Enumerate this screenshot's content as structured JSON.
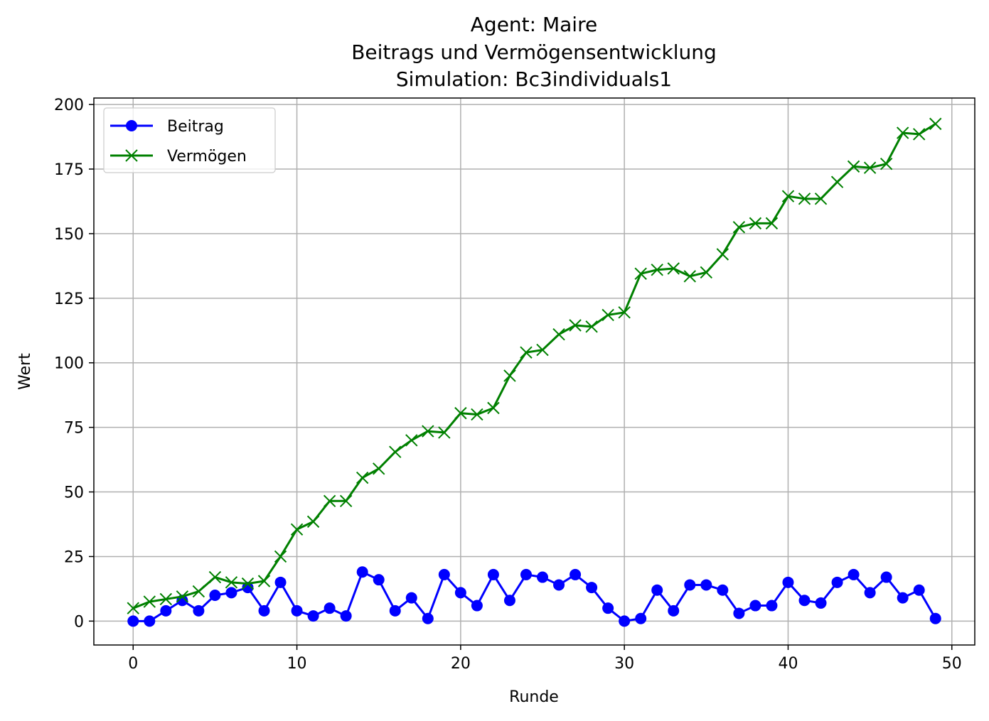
{
  "chart_data": {
    "type": "line",
    "title_lines": [
      "Agent: Maire",
      "Beitrags und Vermögensentwicklung",
      "Simulation: Bc3individuals1"
    ],
    "xlabel": "Runde",
    "ylabel": "Wert",
    "xlim": [
      -2.4,
      51.4
    ],
    "ylim": [
      -9.25,
      202.5
    ],
    "xticks": [
      0,
      10,
      20,
      30,
      40,
      50
    ],
    "yticks": [
      0,
      25,
      50,
      75,
      100,
      125,
      150,
      175,
      200
    ],
    "grid": true,
    "legend_position": "top-left",
    "x": [
      0,
      1,
      2,
      3,
      4,
      5,
      6,
      7,
      8,
      9,
      10,
      11,
      12,
      13,
      14,
      15,
      16,
      17,
      18,
      19,
      20,
      21,
      22,
      23,
      24,
      25,
      26,
      27,
      28,
      29,
      30,
      31,
      32,
      33,
      34,
      35,
      36,
      37,
      38,
      39,
      40,
      41,
      42,
      43,
      44,
      45,
      46,
      47,
      48,
      49
    ],
    "series": [
      {
        "name": "Beitrag",
        "color": "#0000ff",
        "marker": "circle",
        "values": [
          0,
          0,
          4,
          8,
          4,
          10,
          11,
          13,
          4,
          15,
          4,
          2,
          5,
          2,
          19,
          16,
          4,
          9,
          1,
          18,
          11,
          6,
          18,
          8,
          18,
          17,
          14,
          18,
          13,
          5,
          0,
          1,
          12,
          4,
          14,
          14,
          12,
          3,
          6,
          6,
          15,
          8,
          7,
          15,
          18,
          11,
          17,
          9,
          12,
          1
        ]
      },
      {
        "name": "Vermögen",
        "color": "#008000",
        "marker": "x",
        "values": [
          5,
          7.5,
          8.5,
          9.5,
          11.5,
          17,
          15,
          14.5,
          15.5,
          25,
          35.5,
          38.5,
          46.5,
          46.5,
          55.5,
          59,
          65.5,
          70,
          73.5,
          73,
          80.5,
          80,
          82.5,
          95,
          104,
          105,
          111,
          114.5,
          114,
          118.5,
          119.5,
          134.5,
          136,
          136.5,
          133.5,
          135,
          142,
          152.5,
          154,
          154,
          164.5,
          163.5,
          163.5,
          170,
          176,
          175.5,
          177,
          189,
          188.5,
          192.5
        ]
      }
    ]
  }
}
